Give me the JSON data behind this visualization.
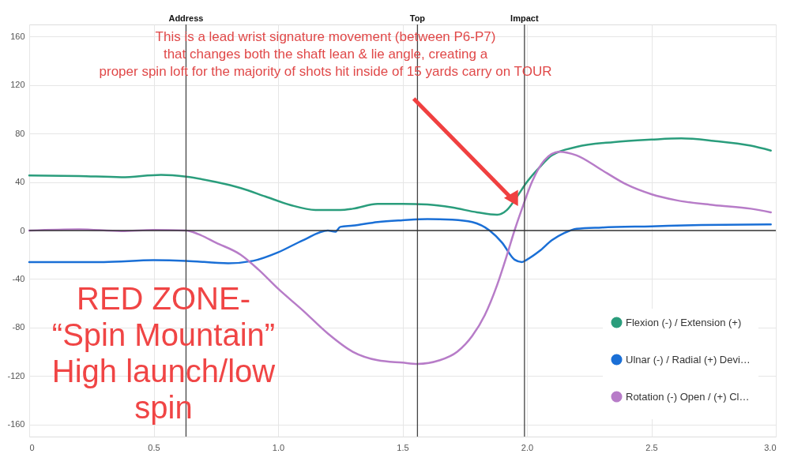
{
  "chart_data": {
    "type": "line",
    "annotations": [
      "This is a lead wrist signature movement (between P6-P7)\nthat changes both the shaft lean & lie angle, creating a\nproper spin loft for the majority of shots hit inside of 15 yards carry on TOUR",
      "RED ZONE-\n“Spin Mountain”\nHigh launch/low\nspin"
    ],
    "series": [
      {
        "name": "Flexion (-) / Extension (+)",
        "color": "#2a9d7c",
        "x": [
          0,
          0.2,
          0.37,
          0.53,
          0.63,
          0.75,
          0.85,
          0.95,
          1.05,
          1.15,
          1.25,
          1.3,
          1.4,
          1.5,
          1.6,
          1.7,
          1.8,
          1.88,
          1.92,
          1.96,
          2.0,
          2.05,
          2.1,
          2.2,
          2.35,
          2.5,
          2.62,
          2.75,
          2.9,
          2.98
        ],
        "values": [
          45.5,
          45,
          44,
          46,
          44.5,
          40,
          35,
          28,
          21,
          17,
          17,
          18,
          22,
          22,
          21.5,
          19,
          15,
          13,
          17,
          28,
          40,
          52,
          62,
          69,
          73,
          75,
          76,
          74,
          70,
          66
        ]
      },
      {
        "name": "Ulnar (-) / Radial (+) Devi…",
        "color": "#1a6fd6",
        "x": [
          0,
          0.3,
          0.5,
          0.63,
          0.8,
          0.9,
          1.0,
          1.1,
          1.2,
          1.23,
          1.25,
          1.3,
          1.4,
          1.5,
          1.6,
          1.7,
          1.78,
          1.85,
          1.9,
          1.95,
          1.98,
          2.0,
          2.05,
          2.1,
          2.15,
          2.2,
          2.3,
          2.5,
          2.7,
          2.98
        ],
        "values": [
          -26,
          -26,
          -24.5,
          -25,
          -27,
          -25,
          -18,
          -8,
          0,
          -1,
          3,
          4,
          7,
          8.5,
          9.5,
          9,
          7,
          0,
          -10,
          -24,
          -26,
          -24,
          -17,
          -8,
          -2,
          1.5,
          2.5,
          3.5,
          4.5,
          5
        ]
      },
      {
        "name": "Rotation (-) Open / (+) Cl…",
        "color": "#b77cc8",
        "x": [
          0,
          0.2,
          0.37,
          0.5,
          0.63,
          0.68,
          0.75,
          0.85,
          0.92,
          1.0,
          1.1,
          1.2,
          1.3,
          1.4,
          1.5,
          1.56,
          1.65,
          1.72,
          1.78,
          1.83,
          1.88,
          1.92,
          1.95,
          1.98,
          2.02,
          2.07,
          2.13,
          2.2,
          2.3,
          2.4,
          2.5,
          2.6,
          2.75,
          2.9,
          2.98
        ],
        "values": [
          0,
          1,
          -0.5,
          0.5,
          0,
          -3,
          -10,
          -20,
          -32,
          -48,
          -66,
          -85,
          -100,
          -107,
          -109,
          -110,
          -107,
          -100,
          -87,
          -70,
          -45,
          -20,
          0,
          18,
          40,
          58,
          65,
          62,
          50,
          38,
          30,
          25,
          21,
          18,
          15
        ]
      }
    ],
    "xlim": [
      0,
      3.0
    ],
    "xticks": [
      0,
      0.5,
      {
        "value": 1,
        "label": "1.0"
      },
      1.5,
      {
        "value": 2,
        "label": "2.0"
      },
      2.5,
      {
        "value": 3,
        "label": "3.0"
      }
    ],
    "ylim": [
      -170,
      170
    ],
    "yticks": [
      -160,
      -120,
      -80,
      -40,
      0,
      40,
      80,
      120,
      160
    ],
    "ref_lines": [
      {
        "axis": "x",
        "value": 0.63,
        "label": "Address"
      },
      {
        "axis": "x",
        "value": 1.56,
        "label": "Top"
      },
      {
        "axis": "x",
        "value": 1.99,
        "label": "Impact"
      },
      {
        "axis": "y",
        "value": 0,
        "label": null
      }
    ],
    "grid": true,
    "legend": "bottom right",
    "marker": "none",
    "line_style": "solid"
  }
}
